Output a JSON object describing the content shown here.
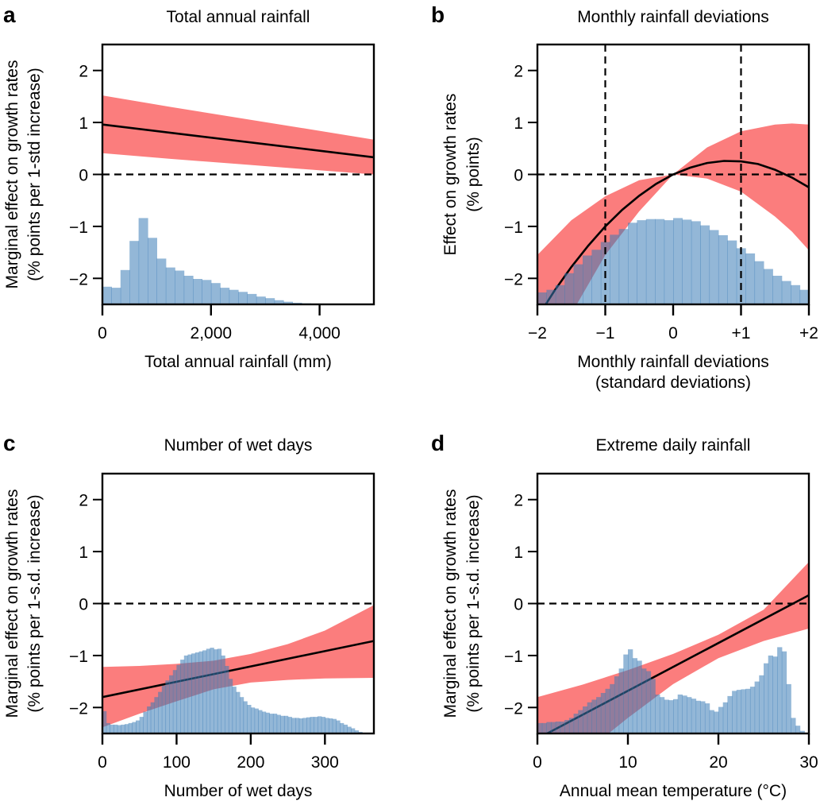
{
  "colors": {
    "band": "#fb7d7d",
    "hist": "#3b7cb6",
    "line": "#000000"
  },
  "chart_data": [
    {
      "type": "line",
      "panel_letter": "a",
      "title": "Total annual rainfall",
      "xlabel": [
        "Total annual rainfall (mm)"
      ],
      "ylabel": [
        "Marginal effect on growth rates",
        "(% points per 1-std increase)"
      ],
      "xlim": [
        0,
        5000
      ],
      "ylim": [
        -2.5,
        2.5
      ],
      "xticks": [
        0,
        2000,
        4000
      ],
      "xtick_labels": [
        "0",
        "2,000",
        "4,000"
      ],
      "yticks": [
        2,
        1,
        0,
        -1,
        -2
      ],
      "ytick_labels": [
        "2",
        "1",
        "0",
        "−1",
        "−2"
      ],
      "hlines": [
        0
      ],
      "vlines": [],
      "line": {
        "x": [
          0,
          5000
        ],
        "y": [
          0.96,
          0.33
        ]
      },
      "band": {
        "x": [
          0,
          1250,
          2500,
          3750,
          5000
        ],
        "upper": [
          1.52,
          1.3,
          1.09,
          0.88,
          0.67
        ],
        "lower": [
          0.41,
          0.3,
          0.2,
          0.1,
          0.0
        ]
      },
      "histogram": {
        "start": 0,
        "bin_width": 166.7,
        "tops": [
          -2.16,
          -2.18,
          -1.84,
          -1.28,
          -0.84,
          -1.22,
          -1.62,
          -1.79,
          -1.85,
          -1.95,
          -2.01,
          -2.03,
          -2.09,
          -2.18,
          -2.22,
          -2.26,
          -2.3,
          -2.35,
          -2.38,
          -2.42,
          -2.45,
          -2.47,
          -2.48,
          -2.49,
          -2.5,
          -2.5,
          -2.5,
          -2.5,
          -2.5,
          -2.5
        ]
      }
    },
    {
      "type": "line",
      "panel_letter": "b",
      "title": "Monthly rainfall deviations",
      "xlabel": [
        "Monthly rainfall deviations",
        "(standard deviations)"
      ],
      "ylabel": [
        "Effect on growth rates",
        "(% points)"
      ],
      "xlim": [
        -2,
        2
      ],
      "ylim": [
        -2.5,
        2.5
      ],
      "xticks": [
        -2,
        -1,
        0,
        1,
        2
      ],
      "xtick_labels": [
        "−2",
        "−1",
        "0",
        "+1",
        "+2"
      ],
      "yticks": [
        2,
        1,
        0,
        -1,
        -2
      ],
      "ytick_labels": [
        "2",
        "1",
        "0",
        "−1",
        "−2"
      ],
      "hlines": [
        0
      ],
      "vlines": [
        -1,
        1
      ],
      "line": {
        "x": [
          -2,
          -1.75,
          -1.5,
          -1.25,
          -1,
          -0.75,
          -0.5,
          -0.25,
          0,
          0.25,
          0.5,
          0.75,
          1,
          1.25,
          1.5,
          1.75,
          2
        ],
        "y": [
          -2.75,
          -2.24,
          -1.78,
          -1.37,
          -1.0,
          -0.68,
          -0.41,
          -0.18,
          0,
          0.13,
          0.22,
          0.26,
          0.25,
          0.2,
          0.09,
          -0.06,
          -0.25
        ]
      },
      "band": {
        "x": [
          -2,
          -1.5,
          -1,
          -0.5,
          0,
          0.5,
          1,
          1.5,
          1.75,
          2
        ],
        "upper": [
          -1.55,
          -0.88,
          -0.42,
          -0.11,
          0,
          0.52,
          0.83,
          0.96,
          0.98,
          0.96
        ],
        "lower": [
          -3.95,
          -2.68,
          -1.55,
          -0.71,
          0,
          -0.08,
          -0.33,
          -0.81,
          -1.1,
          -1.46
        ]
      },
      "histogram": {
        "start": -2,
        "bin_width": 0.1333,
        "tops": [
          -2.27,
          -2.22,
          -2.13,
          -1.9,
          -1.73,
          -1.56,
          -1.45,
          -1.3,
          -1.16,
          -1.05,
          -0.93,
          -0.88,
          -0.86,
          -0.86,
          -0.88,
          -0.84,
          -0.87,
          -0.9,
          -0.98,
          -1.07,
          -1.17,
          -1.27,
          -1.42,
          -1.52,
          -1.67,
          -1.82,
          -1.95,
          -2.05,
          -2.13,
          -2.22
        ]
      }
    },
    {
      "type": "line",
      "panel_letter": "c",
      "title": "Number of wet days",
      "xlabel": [
        "Number of wet days"
      ],
      "ylabel": [
        "Marginal effect on growth rates",
        "(% points per 1-s.d. increase)"
      ],
      "xlim": [
        0,
        366
      ],
      "ylim": [
        -2.5,
        2.5
      ],
      "xticks": [
        0,
        100,
        200,
        300
      ],
      "xtick_labels": [
        "0",
        "100",
        "200",
        "300"
      ],
      "yticks": [
        2,
        1,
        0,
        -1,
        -2
      ],
      "ytick_labels": [
        "2",
        "1",
        "0",
        "−1",
        "−2"
      ],
      "hlines": [
        0
      ],
      "vlines": [],
      "line": {
        "x": [
          0,
          366
        ],
        "y": [
          -1.8,
          -0.72
        ]
      },
      "band": {
        "x": [
          0,
          50,
          100,
          150,
          200,
          250,
          300,
          366
        ],
        "upper": [
          -1.22,
          -1.2,
          -1.16,
          -1.1,
          -0.97,
          -0.78,
          -0.52,
          -0.03
        ],
        "lower": [
          -2.38,
          -2.12,
          -1.88,
          -1.65,
          -1.52,
          -1.47,
          -1.44,
          -1.43
        ]
      },
      "histogram": {
        "start": 0,
        "bin_width": 5,
        "tops": [
          -2.07,
          -2.3,
          -2.33,
          -2.33,
          -2.34,
          -2.33,
          -2.32,
          -2.3,
          -2.28,
          -2.25,
          -2.18,
          -2.08,
          -1.98,
          -1.9,
          -1.8,
          -1.7,
          -1.58,
          -1.48,
          -1.38,
          -1.28,
          -1.18,
          -1.08,
          -1.0,
          -0.98,
          -0.96,
          -0.94,
          -0.92,
          -0.9,
          -0.87,
          -0.85,
          -0.88,
          -0.87,
          -1.0,
          -1.2,
          -1.45,
          -1.6,
          -1.7,
          -1.8,
          -1.88,
          -1.95,
          -2.0,
          -2.02,
          -2.05,
          -2.08,
          -2.1,
          -2.12,
          -2.12,
          -2.14,
          -2.16,
          -2.16,
          -2.18,
          -2.2,
          -2.2,
          -2.21,
          -2.2,
          -2.19,
          -2.18,
          -2.18,
          -2.17,
          -2.18,
          -2.2,
          -2.21,
          -2.22,
          -2.25,
          -2.3,
          -2.33,
          -2.37,
          -2.4,
          -2.44,
          -2.47,
          -2.5,
          -2.5,
          -2.5
        ]
      }
    },
    {
      "type": "line",
      "panel_letter": "d",
      "title": "Extreme daily rainfall",
      "xlabel": [
        "Annual mean temperature (°C)"
      ],
      "ylabel": [
        "Marginal effect on growth rates",
        "(% points per 1-s.d. increase)"
      ],
      "xlim": [
        0,
        30
      ],
      "ylim": [
        -2.5,
        2.5
      ],
      "xticks": [
        0,
        10,
        20,
        30
      ],
      "xtick_labels": [
        "0",
        "10",
        "20",
        "30"
      ],
      "yticks": [
        2,
        1,
        0,
        -1,
        -2
      ],
      "ytick_labels": [
        "2",
        "1",
        "0",
        "−1",
        "−2"
      ],
      "hlines": [
        0
      ],
      "vlines": [],
      "line": {
        "x": [
          0,
          30
        ],
        "y": [
          -2.6,
          0.16
        ]
      },
      "band": {
        "x": [
          0,
          5,
          10,
          15,
          20,
          25,
          30
        ],
        "upper": [
          -1.8,
          -1.56,
          -1.28,
          -0.97,
          -0.6,
          -0.12,
          0.8
        ],
        "lower": [
          -3.6,
          -2.9,
          -2.2,
          -1.55,
          -1.05,
          -0.72,
          -0.48
        ]
      },
      "histogram": {
        "start": 0,
        "bin_width": 0.5,
        "tops": [
          -2.3,
          -2.3,
          -2.28,
          -2.28,
          -2.27,
          -2.27,
          -2.24,
          -2.2,
          -2.12,
          -2.05,
          -1.98,
          -1.9,
          -1.85,
          -1.8,
          -1.72,
          -1.64,
          -1.55,
          -1.4,
          -1.25,
          -0.98,
          -0.88,
          -1.05,
          -1.1,
          -1.25,
          -1.3,
          -1.45,
          -1.75,
          -1.8,
          -1.85,
          -1.86,
          -1.84,
          -1.75,
          -1.77,
          -1.8,
          -1.83,
          -1.87,
          -1.88,
          -1.92,
          -2.05,
          -2.08,
          -1.99,
          -1.9,
          -1.78,
          -1.68,
          -1.66,
          -1.65,
          -1.64,
          -1.6,
          -1.5,
          -1.38,
          -1.15,
          -1.0,
          -1.02,
          -0.84,
          -0.92,
          -1.55,
          -2.2,
          -2.35,
          -2.45,
          -2.5
        ]
      }
    }
  ]
}
